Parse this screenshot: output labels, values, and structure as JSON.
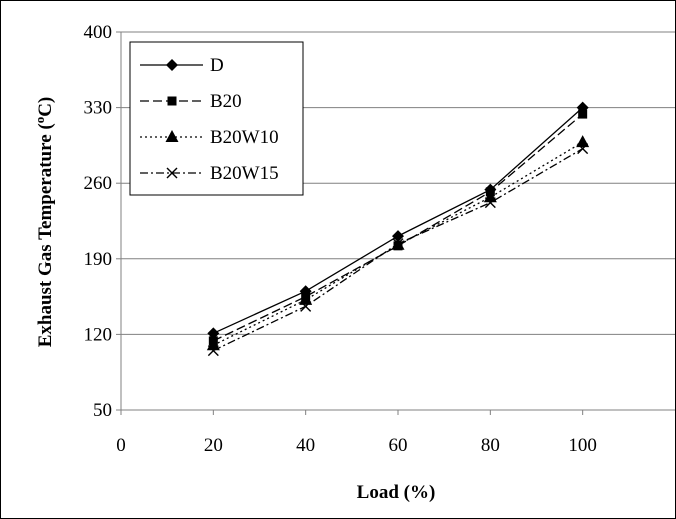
{
  "chart_data": {
    "type": "line",
    "title": "",
    "xlabel": "Load (%)",
    "ylabel_main": "Exhaust Gas Temperature (",
    "ylabel_sup": "o",
    "ylabel_tail": "C)",
    "x": [
      20,
      40,
      60,
      80,
      100
    ],
    "xlim": [
      0,
      120
    ],
    "ylim": [
      50,
      400
    ],
    "x_ticks": [
      "0",
      "20",
      "40",
      "60",
      "80",
      "100"
    ],
    "y_ticks": [
      "50",
      "120",
      "190",
      "260",
      "330",
      "400"
    ],
    "grid": "horizontal",
    "legend_position": "top-left",
    "series": [
      {
        "name": "D",
        "values": [
          121,
          160,
          211,
          254,
          330
        ],
        "marker": "diamond",
        "dash": "solid",
        "color": "#000000"
      },
      {
        "name": "B20",
        "values": [
          114,
          155,
          202,
          252,
          324
        ],
        "marker": "square",
        "dash": "long-dash",
        "color": "#000000"
      },
      {
        "name": "B20W10",
        "values": [
          110,
          152,
          203,
          247,
          298
        ],
        "marker": "triangle",
        "dash": "dotted",
        "color": "#000000"
      },
      {
        "name": "B20W15",
        "values": [
          105,
          146,
          204,
          242,
          292
        ],
        "marker": "x",
        "dash": "dash-dot",
        "color": "#000000"
      }
    ]
  }
}
